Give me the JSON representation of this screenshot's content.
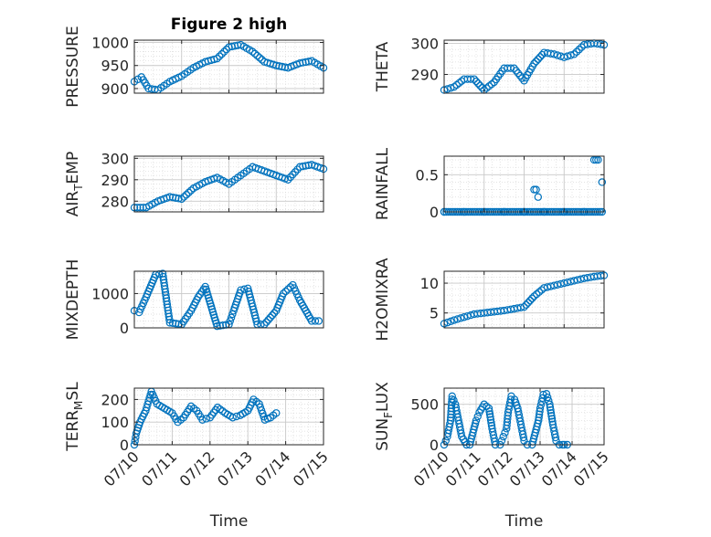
{
  "figure": {
    "title": "Figure 2 high"
  },
  "colors": {
    "marker": "#0072BD",
    "axis": "#262626",
    "grid": "#c8c8c8",
    "background": "#ffffff"
  },
  "chart_data": [
    {
      "id": "pressure",
      "type": "scatter",
      "marker": "open-circle",
      "title": "Figure 2 high",
      "ylabel": "PRESSURE",
      "xlabel": "",
      "xlim": [
        "07/10",
        "07/14"
      ],
      "ylim": [
        890,
        1005
      ],
      "yticks": [
        900,
        950,
        1000
      ],
      "xticks": [
        "07/10",
        "07/11",
        "07/12",
        "07/13",
        "07/14"
      ],
      "show_xticklabels": false,
      "grid": true,
      "x": [
        0.0,
        0.15,
        0.3,
        0.5,
        0.75,
        1.0,
        1.25,
        1.5,
        1.75,
        2.0,
        2.25,
        2.5,
        2.75,
        3.0,
        3.25,
        3.5,
        3.75,
        4.0
      ],
      "y": [
        915,
        925,
        900,
        897,
        915,
        927,
        945,
        958,
        965,
        990,
        995,
        980,
        958,
        950,
        945,
        955,
        960,
        945
      ]
    },
    {
      "id": "theta",
      "type": "scatter",
      "marker": "open-circle",
      "ylabel": "THETA",
      "xlabel": "",
      "xlim": [
        "07/10",
        "07/14"
      ],
      "ylim": [
        284,
        301
      ],
      "yticks": [
        290,
        300
      ],
      "xticks": [
        "07/10",
        "07/11",
        "07/12",
        "07/13",
        "07/14"
      ],
      "show_xticklabels": false,
      "grid": true,
      "x": [
        0.0,
        0.25,
        0.5,
        0.75,
        1.0,
        1.25,
        1.5,
        1.75,
        2.0,
        2.25,
        2.5,
        2.75,
        3.0,
        3.25,
        3.5,
        3.75,
        4.0
      ],
      "y": [
        285,
        286,
        288.5,
        288.5,
        285,
        287.5,
        292,
        292,
        288,
        293.5,
        297,
        296.5,
        295.5,
        296.5,
        299.5,
        300,
        299.5
      ]
    },
    {
      "id": "air_temp",
      "type": "scatter",
      "marker": "open-circle",
      "ylabel": "AIR_TEMP",
      "xlabel": "",
      "xlim": [
        "07/10",
        "07/14"
      ],
      "ylim": [
        275,
        301
      ],
      "yticks": [
        280,
        290,
        300
      ],
      "xticks": [
        "07/10",
        "07/11",
        "07/12",
        "07/13",
        "07/14"
      ],
      "show_xticklabels": false,
      "grid": true,
      "x": [
        0.0,
        0.25,
        0.5,
        0.75,
        1.0,
        1.25,
        1.5,
        1.75,
        2.0,
        2.25,
        2.5,
        2.75,
        3.0,
        3.25,
        3.5,
        3.75,
        4.0
      ],
      "y": [
        277,
        277,
        280,
        282,
        281,
        286,
        289,
        291,
        288,
        292,
        296,
        294,
        292,
        290,
        296,
        297,
        295
      ]
    },
    {
      "id": "rainfall",
      "type": "scatter",
      "marker": "open-circle",
      "ylabel": "RAINFALL",
      "xlabel": "",
      "xlim": [
        "07/10",
        "07/14"
      ],
      "ylim": [
        0,
        0.75
      ],
      "yticks": [
        0,
        0.5
      ],
      "xticks": [
        "07/10",
        "07/11",
        "07/12",
        "07/13",
        "07/14"
      ],
      "show_xticklabels": false,
      "grid": true,
      "x": [
        0.0,
        0.5,
        1.0,
        1.5,
        2.0,
        2.25,
        2.3,
        2.35,
        2.5,
        3.0,
        3.5,
        3.75,
        3.8,
        3.85,
        3.95
      ],
      "y": [
        0,
        0,
        0,
        0,
        0,
        0.3,
        0.3,
        0.2,
        0,
        0,
        0,
        0.7,
        0.7,
        0.7,
        0.4
      ]
    },
    {
      "id": "mixdepth",
      "type": "scatter",
      "marker": "open-circle",
      "ylabel": "MIXDEPTH",
      "xlabel": "",
      "xlim": [
        "07/10",
        "07/14"
      ],
      "ylim": [
        0,
        1650
      ],
      "yticks": [
        0,
        1000
      ],
      "xticks": [
        "07/10",
        "07/11",
        "07/12",
        "07/13",
        "07/14"
      ],
      "show_xticklabels": false,
      "grid": true,
      "x": [
        0.0,
        0.1,
        0.25,
        0.45,
        0.6,
        0.75,
        1.0,
        1.2,
        1.35,
        1.5,
        1.75,
        2.0,
        2.1,
        2.25,
        2.4,
        2.6,
        2.75,
        3.0,
        3.15,
        3.35,
        3.5,
        3.75,
        3.9
      ],
      "y": [
        500,
        450,
        900,
        1550,
        1580,
        150,
        100,
        500,
        900,
        1200,
        50,
        100,
        500,
        1100,
        1150,
        100,
        100,
        500,
        1000,
        1250,
        800,
        200,
        200
      ]
    },
    {
      "id": "h2omixra",
      "type": "scatter",
      "marker": "open-circle",
      "ylabel": "H2OMIXRA",
      "xlabel": "",
      "xlim": [
        "07/10",
        "07/14"
      ],
      "ylim": [
        2.5,
        12
      ],
      "yticks": [
        5,
        10
      ],
      "xticks": [
        "07/10",
        "07/11",
        "07/12",
        "07/13",
        "07/14"
      ],
      "show_xticklabels": false,
      "grid": true,
      "x": [
        0.0,
        0.25,
        0.5,
        0.75,
        1.0,
        1.25,
        1.5,
        1.75,
        2.0,
        2.25,
        2.5,
        2.75,
        3.0,
        3.25,
        3.5,
        3.75,
        4.0
      ],
      "y": [
        3.2,
        3.8,
        4.3,
        4.8,
        5.0,
        5.2,
        5.4,
        5.7,
        6.0,
        7.8,
        9.2,
        9.6,
        10.0,
        10.4,
        10.8,
        11.1,
        11.3
      ]
    },
    {
      "id": "terr_msl",
      "type": "scatter",
      "marker": "open-circle",
      "ylabel": "TERR_MSL",
      "xlabel": "Time",
      "xlim": [
        "07/10",
        "07/15"
      ],
      "ylim": [
        0,
        250
      ],
      "yticks": [
        0,
        100,
        200
      ],
      "xticks": [
        "07/10",
        "07/11",
        "07/12",
        "07/13",
        "07/14",
        "07/15"
      ],
      "show_xticklabels": true,
      "grid": true,
      "x": [
        0.0,
        0.05,
        0.15,
        0.3,
        0.45,
        0.6,
        0.8,
        1.0,
        1.15,
        1.3,
        1.5,
        1.65,
        1.8,
        2.0,
        2.2,
        2.4,
        2.6,
        2.8,
        3.0,
        3.15,
        3.3,
        3.45,
        3.6,
        3.75
      ],
      "y": [
        0,
        50,
        100,
        150,
        235,
        180,
        160,
        140,
        100,
        120,
        170,
        150,
        110,
        120,
        165,
        140,
        120,
        130,
        150,
        200,
        180,
        110,
        120,
        140
      ]
    },
    {
      "id": "sun_flux",
      "type": "scatter",
      "marker": "open-circle",
      "ylabel": "SUN_FLUX",
      "xlabel": "Time",
      "xlim": [
        "07/10",
        "07/15"
      ],
      "ylim": [
        0,
        700
      ],
      "yticks": [
        0,
        500
      ],
      "xticks": [
        "07/10",
        "07/11",
        "07/12",
        "07/13",
        "07/14",
        "07/15"
      ],
      "show_xticklabels": true,
      "grid": true,
      "x": [
        0.0,
        0.1,
        0.2,
        0.25,
        0.35,
        0.45,
        0.55,
        0.7,
        0.8,
        0.9,
        1.0,
        1.1,
        1.25,
        1.4,
        1.5,
        1.6,
        1.75,
        1.85,
        1.95,
        2.0,
        2.1,
        2.2,
        2.3,
        2.4,
        2.5,
        2.6,
        2.75,
        2.85,
        2.95,
        3.0,
        3.1,
        3.2,
        3.3,
        3.4,
        3.5,
        3.6,
        3.7,
        3.75,
        3.85
      ],
      "y": [
        0,
        100,
        300,
        600,
        500,
        300,
        100,
        0,
        0,
        150,
        300,
        400,
        500,
        450,
        200,
        0,
        0,
        100,
        200,
        400,
        600,
        560,
        450,
        250,
        50,
        0,
        0,
        150,
        300,
        450,
        620,
        630,
        500,
        250,
        50,
        0,
        0,
        0,
        0
      ]
    }
  ]
}
